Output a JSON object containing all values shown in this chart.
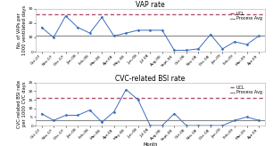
{
  "title1": "VAP rate",
  "title2": "CVC-related BSI rate",
  "ylabel1": "No. of VAPs per\n1000 ventilated days",
  "ylabel2": "CVC-related BSI rate\nper 1000 CVC days",
  "xlabel": "Month",
  "months": [
    "Oct-07",
    "Nov-07",
    "Dec-07",
    "Jan-08",
    "Feb-08",
    "Mar-08",
    "Apr-08",
    "May-08",
    "Jun-08",
    "Jul-08",
    "Aug-08",
    "Sept-08",
    "Oct-08",
    "Nov-08",
    "Dec-08",
    "Jan-09",
    "Feb-09",
    "Mar-09",
    "Apr-09"
  ],
  "vap_data": [
    17,
    10,
    25,
    17,
    13,
    24,
    11,
    13,
    15,
    15,
    15,
    1,
    1,
    2,
    12,
    2,
    7,
    5,
    11
  ],
  "vap_ucl": 26,
  "vap_avg": 11,
  "cvc_data": [
    7,
    3,
    6,
    6,
    9,
    2,
    8,
    21,
    15,
    0,
    0,
    7,
    0,
    0,
    0,
    0,
    3,
    5,
    3
  ],
  "cvc_ucl": 16,
  "cvc_avg": 3,
  "line_color": "#3a6ebf",
  "ucl_color": "#b05070",
  "avg_color": "#888888",
  "bg_color": "#ffffff",
  "marker": "D",
  "marker_size": 1.5,
  "line_width": 0.7,
  "ucl_lw": 1.0,
  "avg_lw": 0.8,
  "title_fontsize": 5.5,
  "label_fontsize": 3.8,
  "tick_fontsize": 3.2,
  "legend_fontsize": 3.5,
  "vap_ylim": [
    0,
    30
  ],
  "vap_yticks": [
    0,
    10,
    20,
    30
  ],
  "cvc_ylim": [
    0,
    25
  ],
  "cvc_yticks": [
    0,
    5,
    10,
    15,
    20,
    25
  ]
}
